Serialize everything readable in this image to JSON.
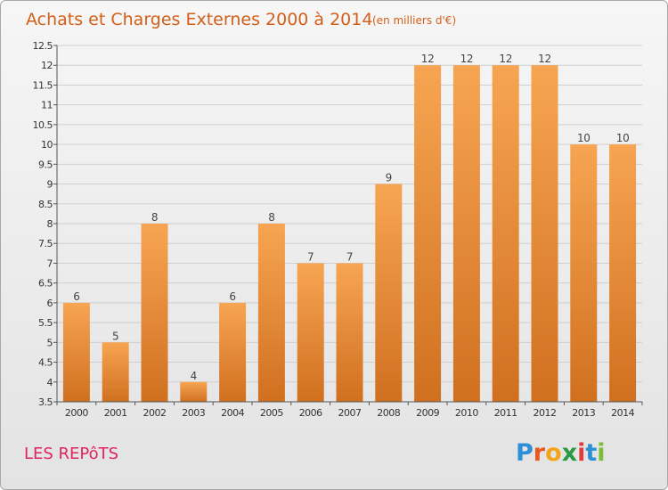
{
  "chart_data": {
    "type": "bar",
    "title": "Achats et Charges Externes 2000 à 2014",
    "subtitle": "(en milliers d'€)",
    "categories": [
      "2000",
      "2001",
      "2002",
      "2003",
      "2004",
      "2005",
      "2006",
      "2007",
      "2008",
      "2009",
      "2010",
      "2011",
      "2012",
      "2013",
      "2014"
    ],
    "values": [
      6,
      5,
      8,
      4,
      6,
      8,
      7,
      7,
      9,
      12,
      12,
      12,
      12,
      10,
      10
    ],
    "data_labels": [
      "6",
      "5",
      "8",
      "4",
      "6",
      "8",
      "7",
      "7",
      "9",
      "12",
      "12",
      "12",
      "12",
      "10",
      "10"
    ],
    "ylim": [
      3.5,
      12.5
    ],
    "yticks": [
      3.5,
      4,
      4.5,
      5,
      5.5,
      6,
      6.5,
      7,
      7.5,
      8,
      8.5,
      9,
      9.5,
      10,
      10.5,
      11,
      11.5,
      12,
      12.5
    ],
    "ytick_labels": [
      "3.5",
      "4",
      "4.5",
      "5",
      "5.5",
      "6",
      "6.5",
      "7",
      "7.5",
      "8",
      "8.5",
      "9",
      "9.5",
      "10",
      "10.5",
      "11",
      "11.5",
      "12",
      "12.5"
    ],
    "xlabel": "",
    "ylabel": "",
    "grid": true,
    "bar_color_top": "#f7a552",
    "bar_color_bottom": "#d0701f"
  },
  "commune": "LES REPôTS",
  "logo": {
    "text": "Proxiti",
    "letters": [
      "P",
      "r",
      "o",
      "x",
      "i",
      "t",
      "i"
    ],
    "colors": [
      "#2d8fd6",
      "#e8581f",
      "#f2a51b",
      "#2a9a44",
      "#e33b3b",
      "#2d8fd6",
      "#7bbd33"
    ]
  }
}
